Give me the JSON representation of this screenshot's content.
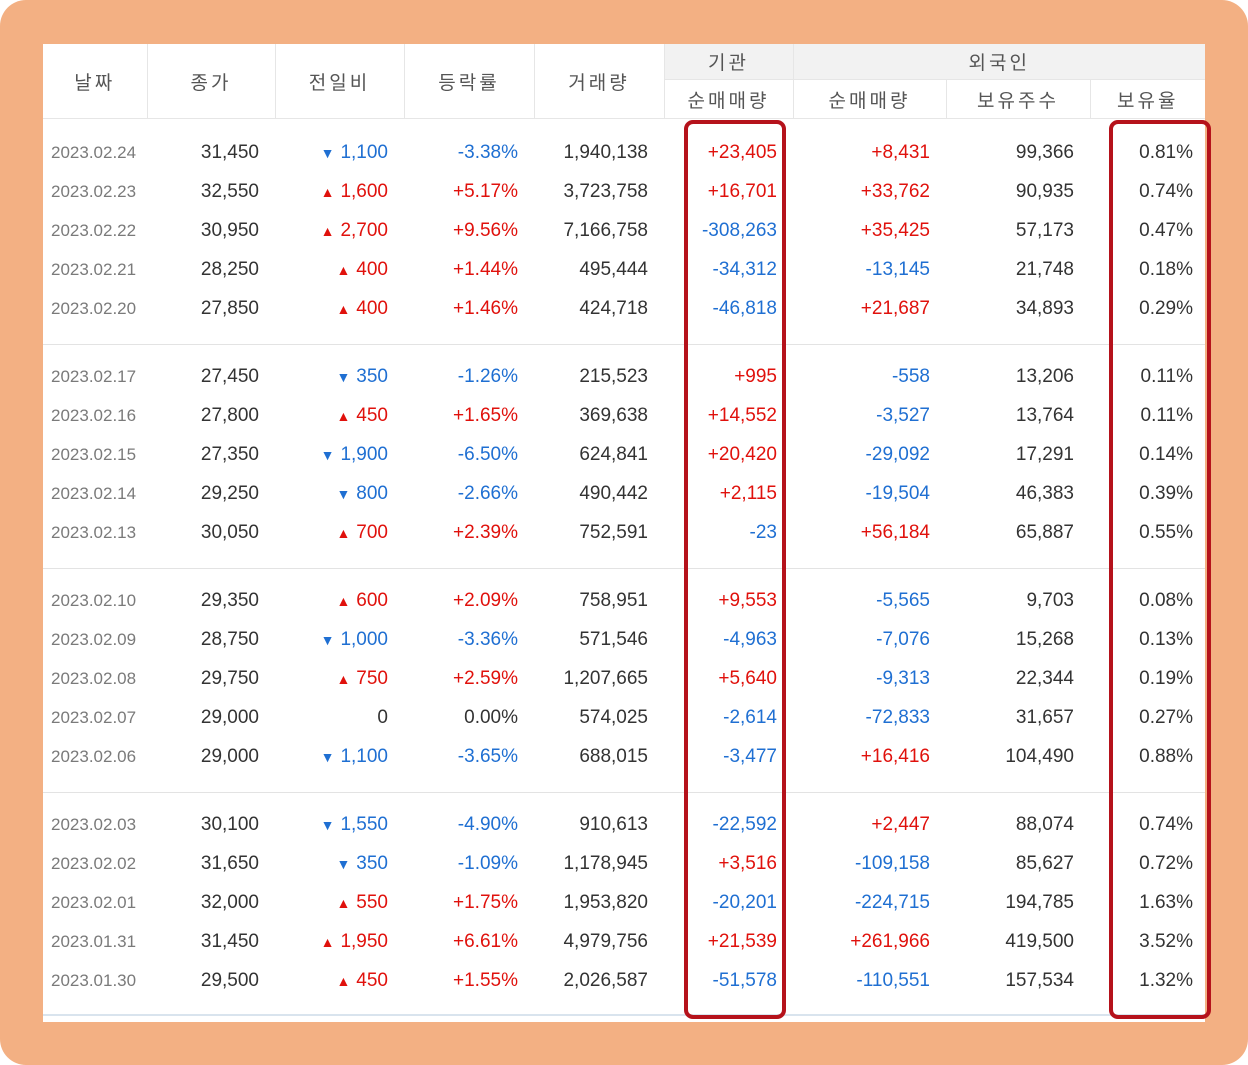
{
  "headers": {
    "date": "날짜",
    "close": "종가",
    "change": "전일비",
    "rate": "등락률",
    "volume": "거래량",
    "institution": "기관",
    "inst_net": "순매매량",
    "foreign": "외국인",
    "foreign_net": "순매매량",
    "holdings": "보유주수",
    "holding_ratio": "보유율"
  },
  "colors": {
    "up": "#e0110c",
    "down": "#1f6fd2",
    "highlight": "#b5121b",
    "frame": "#f3b083"
  },
  "groups": [
    [
      {
        "date": "2023.02.24",
        "close": "31,450",
        "dir": "down",
        "change": "1,100",
        "rate": "-3.38%",
        "volume": "1,940,138",
        "inst": "+23,405",
        "foreign": "+8,431",
        "holdings": "99,366",
        "ratio": "0.81%"
      },
      {
        "date": "2023.02.23",
        "close": "32,550",
        "dir": "up",
        "change": "1,600",
        "rate": "+5.17%",
        "volume": "3,723,758",
        "inst": "+16,701",
        "foreign": "+33,762",
        "holdings": "90,935",
        "ratio": "0.74%"
      },
      {
        "date": "2023.02.22",
        "close": "30,950",
        "dir": "up",
        "change": "2,700",
        "rate": "+9.56%",
        "volume": "7,166,758",
        "inst": "-308,263",
        "foreign": "+35,425",
        "holdings": "57,173",
        "ratio": "0.47%"
      },
      {
        "date": "2023.02.21",
        "close": "28,250",
        "dir": "up",
        "change": "400",
        "rate": "+1.44%",
        "volume": "495,444",
        "inst": "-34,312",
        "foreign": "-13,145",
        "holdings": "21,748",
        "ratio": "0.18%"
      },
      {
        "date": "2023.02.20",
        "close": "27,850",
        "dir": "up",
        "change": "400",
        "rate": "+1.46%",
        "volume": "424,718",
        "inst": "-46,818",
        "foreign": "+21,687",
        "holdings": "34,893",
        "ratio": "0.29%"
      }
    ],
    [
      {
        "date": "2023.02.17",
        "close": "27,450",
        "dir": "down",
        "change": "350",
        "rate": "-1.26%",
        "volume": "215,523",
        "inst": "+995",
        "foreign": "-558",
        "holdings": "13,206",
        "ratio": "0.11%"
      },
      {
        "date": "2023.02.16",
        "close": "27,800",
        "dir": "up",
        "change": "450",
        "rate": "+1.65%",
        "volume": "369,638",
        "inst": "+14,552",
        "foreign": "-3,527",
        "holdings": "13,764",
        "ratio": "0.11%"
      },
      {
        "date": "2023.02.15",
        "close": "27,350",
        "dir": "down",
        "change": "1,900",
        "rate": "-6.50%",
        "volume": "624,841",
        "inst": "+20,420",
        "foreign": "-29,092",
        "holdings": "17,291",
        "ratio": "0.14%"
      },
      {
        "date": "2023.02.14",
        "close": "29,250",
        "dir": "down",
        "change": "800",
        "rate": "-2.66%",
        "volume": "490,442",
        "inst": "+2,115",
        "foreign": "-19,504",
        "holdings": "46,383",
        "ratio": "0.39%"
      },
      {
        "date": "2023.02.13",
        "close": "30,050",
        "dir": "up",
        "change": "700",
        "rate": "+2.39%",
        "volume": "752,591",
        "inst": "-23",
        "foreign": "+56,184",
        "holdings": "65,887",
        "ratio": "0.55%"
      }
    ],
    [
      {
        "date": "2023.02.10",
        "close": "29,350",
        "dir": "up",
        "change": "600",
        "rate": "+2.09%",
        "volume": "758,951",
        "inst": "+9,553",
        "foreign": "-5,565",
        "holdings": "9,703",
        "ratio": "0.08%"
      },
      {
        "date": "2023.02.09",
        "close": "28,750",
        "dir": "down",
        "change": "1,000",
        "rate": "-3.36%",
        "volume": "571,546",
        "inst": "-4,963",
        "foreign": "-7,076",
        "holdings": "15,268",
        "ratio": "0.13%"
      },
      {
        "date": "2023.02.08",
        "close": "29,750",
        "dir": "up",
        "change": "750",
        "rate": "+2.59%",
        "volume": "1,207,665",
        "inst": "+5,640",
        "foreign": "-9,313",
        "holdings": "22,344",
        "ratio": "0.19%"
      },
      {
        "date": "2023.02.07",
        "close": "29,000",
        "dir": "none",
        "change": "0",
        "rate": "0.00%",
        "volume": "574,025",
        "inst": "-2,614",
        "foreign": "-72,833",
        "holdings": "31,657",
        "ratio": "0.27%"
      },
      {
        "date": "2023.02.06",
        "close": "29,000",
        "dir": "down",
        "change": "1,100",
        "rate": "-3.65%",
        "volume": "688,015",
        "inst": "-3,477",
        "foreign": "+16,416",
        "holdings": "104,490",
        "ratio": "0.88%"
      }
    ],
    [
      {
        "date": "2023.02.03",
        "close": "30,100",
        "dir": "down",
        "change": "1,550",
        "rate": "-4.90%",
        "volume": "910,613",
        "inst": "-22,592",
        "foreign": "+2,447",
        "holdings": "88,074",
        "ratio": "0.74%"
      },
      {
        "date": "2023.02.02",
        "close": "31,650",
        "dir": "down",
        "change": "350",
        "rate": "-1.09%",
        "volume": "1,178,945",
        "inst": "+3,516",
        "foreign": "-109,158",
        "holdings": "85,627",
        "ratio": "0.72%"
      },
      {
        "date": "2023.02.01",
        "close": "32,000",
        "dir": "up",
        "change": "550",
        "rate": "+1.75%",
        "volume": "1,953,820",
        "inst": "-20,201",
        "foreign": "-224,715",
        "holdings": "194,785",
        "ratio": "1.63%"
      },
      {
        "date": "2023.01.31",
        "close": "31,450",
        "dir": "up",
        "change": "1,950",
        "rate": "+6.61%",
        "volume": "4,979,756",
        "inst": "+21,539",
        "foreign": "+261,966",
        "holdings": "419,500",
        "ratio": "3.52%"
      },
      {
        "date": "2023.01.30",
        "close": "29,500",
        "dir": "up",
        "change": "450",
        "rate": "+1.55%",
        "volume": "2,026,587",
        "inst": "-51,578",
        "foreign": "-110,551",
        "holdings": "157,534",
        "ratio": "1.32%"
      }
    ]
  ]
}
